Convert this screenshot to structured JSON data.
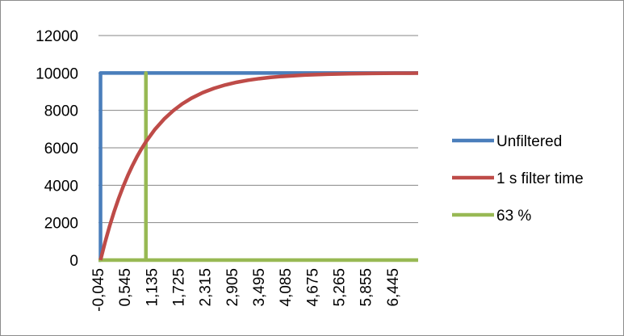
{
  "chart_data": {
    "type": "line",
    "title": "",
    "xlabel": "",
    "ylabel": "",
    "ylim": [
      0,
      12000
    ],
    "yticks": [
      0,
      2000,
      4000,
      6000,
      8000,
      10000,
      12000
    ],
    "xlim": [
      -0.045,
      7.0
    ],
    "xtick_values": [
      -0.045,
      0.545,
      1.135,
      1.725,
      2.315,
      2.905,
      3.495,
      4.085,
      4.675,
      5.265,
      5.855,
      6.445
    ],
    "xtick_labels": [
      "-0,045",
      "0,545",
      "1,135",
      "1,725",
      "2,315",
      "2,905",
      "3,495",
      "4,085",
      "4,675",
      "5,265",
      "5,855",
      "6,445"
    ],
    "grid": "horizontal",
    "legend_position": "right",
    "series": [
      {
        "name": "Unfiltered",
        "color": "#4a7ebb",
        "x": [
          -0.045,
          0.0,
          0.0,
          7.0
        ],
        "y": [
          0,
          0,
          10000,
          10000
        ]
      },
      {
        "name": "1 s filter time",
        "color": "#be4b48",
        "x": [
          0.0,
          0.1,
          0.2,
          0.3,
          0.4,
          0.5,
          0.6,
          0.7,
          0.8,
          0.9,
          1.0,
          1.2,
          1.4,
          1.6,
          1.8,
          2.0,
          2.25,
          2.5,
          2.75,
          3.0,
          3.25,
          3.5,
          3.75,
          4.0,
          4.5,
          5.0,
          5.5,
          6.0,
          6.5,
          7.0
        ],
        "y": [
          0,
          952,
          1813,
          2592,
          3297,
          3935,
          4512,
          5034,
          5507,
          5934,
          6321,
          6988,
          7534,
          7981,
          8347,
          8647,
          8946,
          9179,
          9361,
          9502,
          9612,
          9698,
          9765,
          9817,
          9889,
          9933,
          9959,
          9975,
          9985,
          9991
        ]
      },
      {
        "name": "63 %",
        "color": "#98b954",
        "x": [
          -0.045,
          1.0,
          1.0,
          1.0,
          7.0
        ],
        "y": [
          0,
          0,
          10000,
          0,
          0
        ]
      }
    ]
  }
}
